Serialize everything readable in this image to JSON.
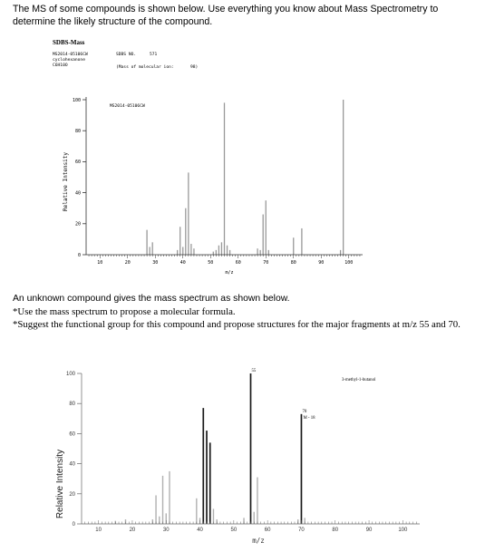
{
  "intro_text": "The MS of some compounds is shown below. Use everything you know about Mass Spectrometry to determine the likely structure of the compound.",
  "question": {
    "line1": "An unknown compound gives the mass spectrum as shown below.",
    "line2": "*Use the mass spectrum to propose a molecular formula.",
    "line3": "*Suggest the functional group for this compound and propose structures for the major fragments at m/z 55 and 70."
  },
  "chart_data": [
    {
      "type": "bar",
      "title": "SDBS-Mass",
      "header": {
        "id": "MS2014-05106CW",
        "compound": "cyclohexanone",
        "formula": "C6H10O",
        "sdbs_no_label": "SDBS NO.",
        "sdbs_no": "571",
        "molecular_ion": "(Mass of molecular ion:",
        "molecular_ion_value": "98)"
      },
      "plot_label": "MS2014-05106CW",
      "xlabel": "m/z",
      "ylabel": "Relative Intensity",
      "xlim": [
        5,
        105
      ],
      "ylim": [
        0,
        100
      ],
      "xticks": [
        10,
        20,
        30,
        40,
        50,
        60,
        70,
        80,
        90,
        100
      ],
      "yticks": [
        0,
        20,
        40,
        60,
        80,
        100
      ],
      "peaks": [
        {
          "x": 27,
          "y": 16
        },
        {
          "x": 28,
          "y": 5
        },
        {
          "x": 29,
          "y": 8
        },
        {
          "x": 38,
          "y": 3
        },
        {
          "x": 39,
          "y": 18
        },
        {
          "x": 40,
          "y": 5
        },
        {
          "x": 41,
          "y": 30
        },
        {
          "x": 42,
          "y": 53
        },
        {
          "x": 43,
          "y": 7
        },
        {
          "x": 44,
          "y": 4
        },
        {
          "x": 51,
          "y": 2
        },
        {
          "x": 52,
          "y": 3
        },
        {
          "x": 53,
          "y": 6
        },
        {
          "x": 54,
          "y": 8
        },
        {
          "x": 55,
          "y": 98
        },
        {
          "x": 56,
          "y": 6
        },
        {
          "x": 57,
          "y": 3
        },
        {
          "x": 67,
          "y": 4
        },
        {
          "x": 68,
          "y": 3
        },
        {
          "x": 69,
          "y": 26
        },
        {
          "x": 70,
          "y": 35
        },
        {
          "x": 71,
          "y": 3
        },
        {
          "x": 80,
          "y": 11
        },
        {
          "x": 83,
          "y": 17
        },
        {
          "x": 97,
          "y": 3
        },
        {
          "x": 98,
          "y": 100
        }
      ]
    },
    {
      "type": "bar",
      "title": "3-methyl-1-butanol",
      "xlabel": "m/z",
      "ylabel": "Relative Intensity",
      "xlim": [
        5,
        105
      ],
      "ylim": [
        0,
        100
      ],
      "xticks": [
        10,
        20,
        30,
        40,
        50,
        60,
        70,
        80,
        90,
        100
      ],
      "yticks": [
        0,
        20,
        40,
        60,
        80,
        100
      ],
      "annotations": [
        {
          "x": 55,
          "text": "55"
        },
        {
          "x": 70,
          "text": "70",
          "subtext": "M - 18"
        }
      ],
      "peaks": [
        {
          "x": 15,
          "y": 2
        },
        {
          "x": 18,
          "y": 3
        },
        {
          "x": 26,
          "y": 3
        },
        {
          "x": 27,
          "y": 19
        },
        {
          "x": 28,
          "y": 5
        },
        {
          "x": 29,
          "y": 32
        },
        {
          "x": 30,
          "y": 7
        },
        {
          "x": 31,
          "y": 35
        },
        {
          "x": 39,
          "y": 17
        },
        {
          "x": 40,
          "y": 4
        },
        {
          "x": 41,
          "y": 77
        },
        {
          "x": 42,
          "y": 62
        },
        {
          "x": 43,
          "y": 54
        },
        {
          "x": 44,
          "y": 10
        },
        {
          "x": 45,
          "y": 3
        },
        {
          "x": 53,
          "y": 4
        },
        {
          "x": 55,
          "y": 100
        },
        {
          "x": 56,
          "y": 8
        },
        {
          "x": 57,
          "y": 31
        },
        {
          "x": 69,
          "y": 3
        },
        {
          "x": 70,
          "y": 73
        },
        {
          "x": 71,
          "y": 4
        }
      ]
    }
  ],
  "colors": {
    "chart1_bar": "#999999",
    "chart2_bar_light": "#b0b0b0",
    "chart2_bar_dark": "#1a1a1a",
    "axis": "#333333"
  }
}
